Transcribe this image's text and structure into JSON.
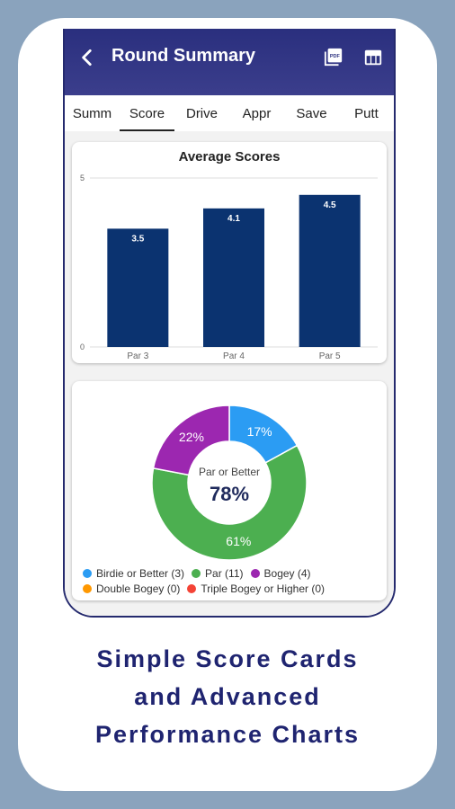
{
  "app": {
    "title": "Round Summary",
    "icons": [
      "back-arrow-icon",
      "pdf-icon",
      "table-icon"
    ]
  },
  "tabs": [
    {
      "label": "Summ",
      "active": false
    },
    {
      "label": "Score",
      "active": true
    },
    {
      "label": "Drive",
      "active": false
    },
    {
      "label": "Appr",
      "active": false
    },
    {
      "label": "Save",
      "active": false
    },
    {
      "label": "Putt",
      "active": false
    }
  ],
  "chart_data": [
    {
      "type": "bar",
      "title": "Average Scores",
      "categories": [
        "Par 3",
        "Par 4",
        "Par 5"
      ],
      "values": [
        3.5,
        4.1,
        4.5
      ],
      "ylim": [
        0,
        5
      ],
      "yticks": [
        "0",
        "5"
      ],
      "bar_color": "#0b3370",
      "grid": true
    },
    {
      "type": "pie",
      "center_label": "Par or Better",
      "center_value": "78%",
      "slices": [
        {
          "label": "Birdie or Better",
          "count": 3,
          "percent": 17,
          "color": "#2b9cf3",
          "display": "17%"
        },
        {
          "label": "Par",
          "count": 11,
          "percent": 61,
          "color": "#4caf50",
          "display": "61%"
        },
        {
          "label": "Bogey",
          "count": 4,
          "percent": 22,
          "color": "#9c27b0",
          "display": "22%"
        },
        {
          "label": "Double Bogey",
          "count": 0,
          "percent": 0,
          "color": "#ff9800",
          "display": ""
        },
        {
          "label": "Triple Bogey or Higher",
          "count": 0,
          "percent": 0,
          "color": "#f44336",
          "display": ""
        }
      ],
      "legend": [
        [
          "Birdie or Better (3)",
          "Par (11)",
          "Bogey (4)"
        ],
        [
          "Double Bogey (0)",
          "Triple Bogey or Higher (0)"
        ]
      ]
    }
  ],
  "tagline": [
    "Simple Score Cards",
    "and Advanced",
    "Performance Charts"
  ]
}
